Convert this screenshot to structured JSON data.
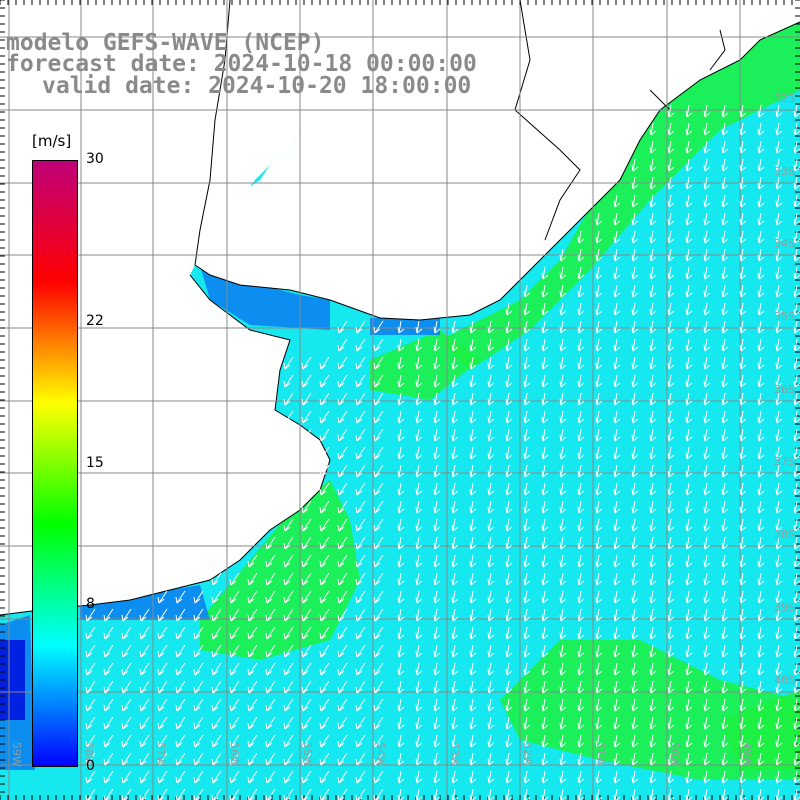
{
  "title": {
    "line1": "modelo GEFS-WAVE (NCEP)",
    "line2": "forecast date: 2024-10-18 00:00:00",
    "line3": "valid date: 2024-10-20 18:00:00"
  },
  "colorbar": {
    "units": "[m/s]",
    "ticks": [
      "30",
      "22",
      "15",
      "8",
      "0"
    ],
    "tick_values": [
      30,
      22,
      15,
      8,
      0
    ],
    "range": [
      0,
      30
    ],
    "colors": [
      "#0000ff",
      "#00ffff",
      "#00ff00",
      "#ffff00",
      "#ff0000",
      "#c0007a"
    ]
  },
  "map": {
    "field": "wind speed and direction",
    "lat_labels": [
      "32S",
      "33S",
      "34S",
      "35S",
      "36S",
      "37S",
      "38S",
      "39S",
      "40S"
    ],
    "lon_labels": [
      "59W",
      "58W",
      "57W",
      "56W",
      "55W",
      "54W",
      "53W",
      "52W",
      "51W",
      "50W",
      "49W"
    ],
    "ocean_colors": {
      "low": "#0a84f0",
      "mid": "#16e8f0",
      "high": "#1cf040"
    },
    "land_color": "#ffffff",
    "grid_color": "#888888",
    "coast_color": "#000000"
  }
}
